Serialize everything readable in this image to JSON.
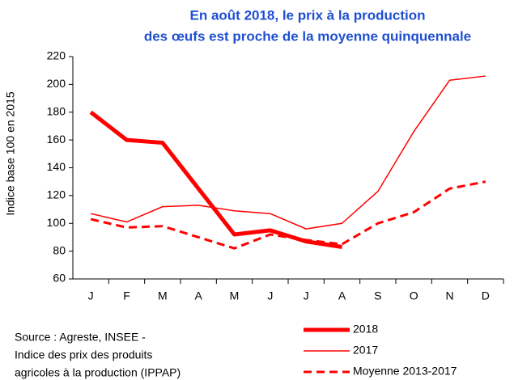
{
  "chart_data": {
    "type": "line",
    "title": [
      "En août 2018, le prix à la production",
      "des œufs est proche de la moyenne quinquennale"
    ],
    "ylabel": "Indice base 100 en 2015",
    "source": [
      "Source : Agreste, INSEE -",
      "Indice des prix des produits",
      "agricoles à la production (IPPAP)"
    ],
    "categories": [
      "J",
      "F",
      "M",
      "A",
      "M",
      "J",
      "J",
      "A",
      "S",
      "O",
      "N",
      "D"
    ],
    "ylim": [
      60,
      220
    ],
    "yticks": [
      60,
      80,
      100,
      120,
      140,
      160,
      180,
      200,
      220
    ],
    "grid": false,
    "series": [
      {
        "name": "2018",
        "color": "#ff0000",
        "width": 5,
        "dash": "none",
        "values": [
          180,
          160,
          158,
          125,
          92,
          95,
          87,
          83,
          null,
          null,
          null,
          null
        ]
      },
      {
        "name": "2017",
        "color": "#ff0000",
        "width": 1.5,
        "dash": "none",
        "values": [
          107,
          101,
          112,
          113,
          109,
          107,
          96,
          100,
          123,
          166,
          203,
          206
        ]
      },
      {
        "name": "Moyenne 2013-2017",
        "color": "#ff0000",
        "width": 3,
        "dash": "10,6",
        "values": [
          103,
          97,
          98,
          90,
          82,
          92,
          88,
          85,
          100,
          108,
          125,
          130
        ]
      }
    ]
  }
}
